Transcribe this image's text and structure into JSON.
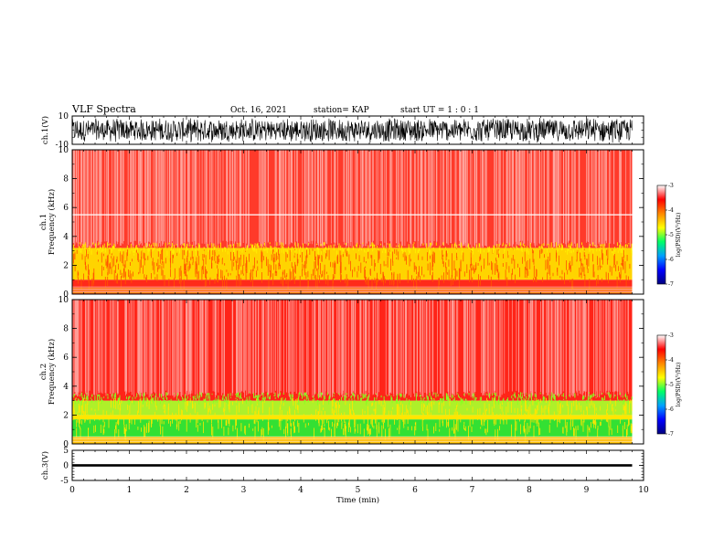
{
  "header": {
    "title": "VLF Spectra",
    "date": "Oct. 16, 2021",
    "station": "station= KAP",
    "start": "start  UT =   1 : 0  : 1"
  },
  "colors": {
    "waveform": "#000000",
    "spectrum_red": "#ff2a1a",
    "spectrum_yellow": "#ffe600",
    "spectrum_green": "#22dd22",
    "colormap": [
      "#000080",
      "#0000ff",
      "#00a0ff",
      "#00ff66",
      "#ffff00",
      "#ff8800",
      "#ff0000",
      "#ffffff"
    ]
  },
  "chart_data": [
    {
      "type": "line",
      "name": "ch1-waveform",
      "ylabel": "ch.1(V)",
      "ylim": [
        -10,
        10
      ],
      "yticks": [
        "10",
        "-10"
      ],
      "xlim": [
        0,
        10
      ],
      "description_values": {
        "amplitude_range": [
          -10,
          10
        ],
        "data_end_min": 9.8
      }
    },
    {
      "type": "heatmap",
      "name": "ch1-spectrogram",
      "ylabel": "ch.1\nFrequency (kHz)",
      "ylim": [
        0,
        10
      ],
      "yticks": [
        "0",
        "2",
        "4",
        "6",
        "8",
        "10"
      ],
      "xlim": [
        0,
        10
      ],
      "data_end_min": 9.8,
      "bands": [
        {
          "from_khz": 0.0,
          "to_khz": 0.3,
          "level": "mixed-red"
        },
        {
          "from_khz": 0.3,
          "to_khz": 1.0,
          "level": "red"
        },
        {
          "from_khz": 1.0,
          "to_khz": 3.2,
          "level": "yellow"
        },
        {
          "from_khz": 3.2,
          "to_khz": 10.0,
          "level": "red-white"
        }
      ],
      "lines_khz": [
        5.5
      ],
      "colorbar": {
        "label": "log(PSD)(V^2/Hz)",
        "ticks": [
          "-3",
          "-4",
          "-5",
          "-6",
          "-7"
        ],
        "range": [
          -7,
          -3
        ]
      }
    },
    {
      "type": "heatmap",
      "name": "ch2-spectrogram",
      "ylabel": "ch.2\nFrequency (kHz)",
      "ylim": [
        0,
        10
      ],
      "yticks": [
        "0",
        "2",
        "4",
        "6",
        "8",
        "10"
      ],
      "xlim": [
        0,
        10
      ],
      "data_end_min": 9.8,
      "bands": [
        {
          "from_khz": 0.0,
          "to_khz": 0.5,
          "level": "mixed-yellow"
        },
        {
          "from_khz": 0.5,
          "to_khz": 1.7,
          "level": "green"
        },
        {
          "from_khz": 1.7,
          "to_khz": 2.0,
          "level": "yellow"
        },
        {
          "from_khz": 2.0,
          "to_khz": 3.0,
          "level": "green-yellow"
        },
        {
          "from_khz": 3.0,
          "to_khz": 10.0,
          "level": "red"
        }
      ],
      "colorbar": {
        "label": "log(PSD)(V^2/Hz)",
        "ticks": [
          "-3",
          "-4",
          "-5",
          "-6",
          "-7"
        ],
        "range": [
          -7,
          -3
        ]
      }
    },
    {
      "type": "line",
      "name": "ch3-waveform",
      "ylabel": "ch.3(V)",
      "ylim": [
        -5,
        5
      ],
      "yticks": [
        "5",
        "0",
        "-5"
      ],
      "xlim": [
        0,
        10
      ],
      "xlabel": "Time (min)",
      "xticks": [
        "0",
        "1",
        "2",
        "3",
        "4",
        "5",
        "6",
        "7",
        "8",
        "9",
        "10"
      ],
      "description_values": {
        "baseline_v": 0,
        "amplitude_range": [
          -0.4,
          0.4
        ],
        "data_end_min": 9.8
      }
    }
  ],
  "colorbar_label_text": "log(PSD)(V²/Hz)"
}
